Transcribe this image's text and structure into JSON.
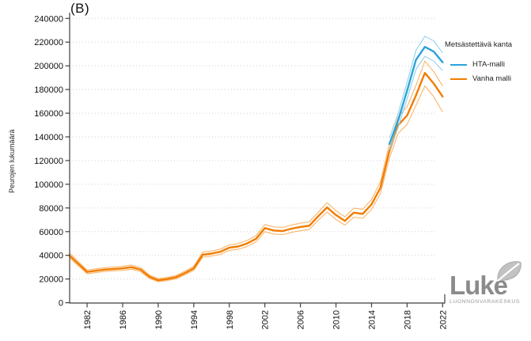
{
  "title": "(B)",
  "logo": {
    "name": "Luke",
    "subtitle": "LUONNONVARAKESKUS"
  },
  "chart_data": {
    "type": "line",
    "title": "(B)",
    "xlabel": "",
    "ylabel": "Peurojen lukumäärä",
    "ylim": [
      0,
      240000
    ],
    "xlim": [
      1980,
      2023
    ],
    "ytick_step": 20000,
    "yticks": [
      0,
      20000,
      40000,
      60000,
      80000,
      100000,
      120000,
      140000,
      160000,
      180000,
      200000,
      220000,
      240000
    ],
    "xticks": [
      1982,
      1986,
      1990,
      1994,
      1998,
      2002,
      2006,
      2010,
      2014,
      2018,
      2022
    ],
    "grid": "horizontal dotted",
    "legend": {
      "title": "Metsästettävä kanta",
      "position": "right",
      "items": [
        {
          "label": "HTA-malli",
          "color": "#2aa3db"
        },
        {
          "label": "Vanha malli",
          "color": "#f17c00"
        }
      ]
    },
    "series": [
      {
        "name": "HTA-malli",
        "color": "#2aa3db",
        "band_color": "#8fd2ea",
        "x": [
          2016,
          2017,
          2018,
          2019,
          2020,
          2021,
          2022
        ],
        "values": [
          134000,
          154000,
          179000,
          205000,
          216000,
          212000,
          203000
        ],
        "upper": [
          139000,
          160000,
          186000,
          213000,
          225000,
          221000,
          211000
        ],
        "lower": [
          129000,
          148000,
          172000,
          197000,
          208000,
          204000,
          196000
        ]
      },
      {
        "name": "Vanha malli",
        "color": "#f17c00",
        "band_color": "#f9b468",
        "x": [
          1980,
          1981,
          1982,
          1983,
          1984,
          1985,
          1986,
          1987,
          1988,
          1989,
          1990,
          1991,
          1992,
          1993,
          1994,
          1995,
          1996,
          1997,
          1998,
          1999,
          2000,
          2001,
          2002,
          2003,
          2004,
          2005,
          2006,
          2007,
          2008,
          2009,
          2010,
          2011,
          2012,
          2013,
          2014,
          2015,
          2016,
          2017,
          2018,
          2019,
          2020,
          2021,
          2022
        ],
        "values": [
          40000,
          33000,
          26000,
          27000,
          28000,
          28500,
          29000,
          30000,
          28000,
          22000,
          19000,
          20000,
          21500,
          25000,
          29000,
          40500,
          41500,
          43000,
          46500,
          47500,
          50000,
          54000,
          63000,
          61000,
          60500,
          62500,
          64000,
          65000,
          73000,
          80500,
          74000,
          69000,
          76000,
          75000,
          83000,
          97000,
          128000,
          150000,
          158000,
          175000,
          194000,
          185000,
          174000
        ],
        "upper": [
          42000,
          34800,
          27600,
          28600,
          29600,
          30100,
          30700,
          31700,
          29700,
          23400,
          20300,
          21300,
          22900,
          26500,
          30700,
          42600,
          43600,
          45200,
          48800,
          49900,
          52500,
          56700,
          66000,
          64000,
          63500,
          65600,
          67200,
          68200,
          76400,
          84500,
          77700,
          72500,
          79800,
          78800,
          87200,
          102000,
          134000,
          157000,
          165500,
          183500,
          204000,
          195000,
          183000
        ],
        "lower": [
          38000,
          31200,
          24400,
          25400,
          26400,
          26900,
          27300,
          28300,
          26300,
          20600,
          17700,
          18700,
          20100,
          23500,
          27300,
          38400,
          39400,
          40800,
          44200,
          45100,
          47500,
          51300,
          60000,
          58000,
          57500,
          59400,
          60800,
          61800,
          69600,
          76500,
          70300,
          65500,
          72200,
          71200,
          78800,
          92000,
          122000,
          143000,
          150500,
          166500,
          183000,
          174000,
          161000
        ]
      }
    ]
  }
}
